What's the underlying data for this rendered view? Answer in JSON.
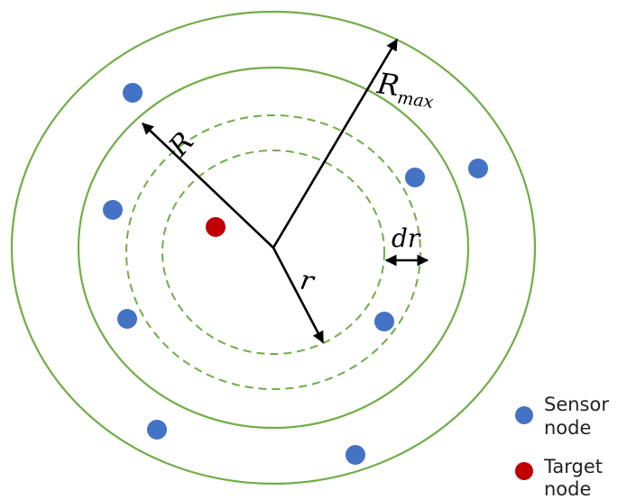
{
  "labels": {
    "rmax_main": "R",
    "rmax_sub": "max",
    "big_r": "R",
    "small_r": "r",
    "dr": "dr"
  },
  "legend": {
    "sensor_line1": "Sensor",
    "sensor_line2": "node",
    "target_line1": "Target",
    "target_line2": "node"
  },
  "colors": {
    "ring": "#70ad47",
    "sensor_node": "#4472c4",
    "target_node": "#c00000",
    "arrow": "#000000"
  }
}
